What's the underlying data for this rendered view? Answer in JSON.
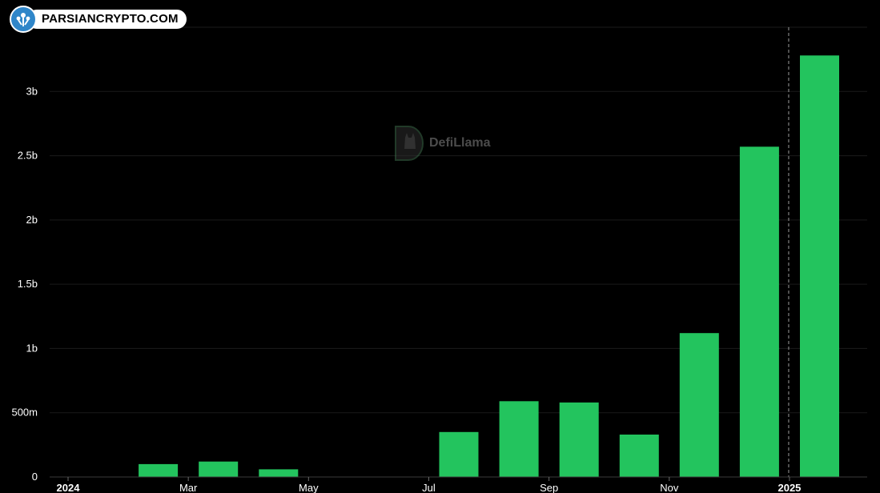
{
  "brand": {
    "label": "PARSIANCRYPTO.COM",
    "icon": "parsiancrypto-logo-icon"
  },
  "watermark": {
    "label": "DefiLlama",
    "icon": "defillama-logo-icon"
  },
  "colors": {
    "background": "#000000",
    "bar": "#23c45e",
    "grid": "#1b1b1b",
    "text": "#ffffff",
    "crosshair": "#9a9a9a"
  },
  "chart_data": {
    "type": "bar",
    "title": "",
    "xlabel": "",
    "ylabel": "",
    "ylim": [
      0,
      3500000000
    ],
    "y_ticks": [
      {
        "value": 0,
        "label": "0"
      },
      {
        "value": 500000000,
        "label": "500m"
      },
      {
        "value": 1000000000,
        "label": "1b"
      },
      {
        "value": 1500000000,
        "label": "1.5b"
      },
      {
        "value": 2000000000,
        "label": "2b"
      },
      {
        "value": 2500000000,
        "label": "2.5b"
      },
      {
        "value": 3000000000,
        "label": "3b"
      }
    ],
    "x_ticks": [
      {
        "label": "2024",
        "bold": true,
        "month_index": 0
      },
      {
        "label": "Mar",
        "bold": false,
        "month_index": 2
      },
      {
        "label": "May",
        "bold": false,
        "month_index": 4
      },
      {
        "label": "Jul",
        "bold": false,
        "month_index": 6
      },
      {
        "label": "Sep",
        "bold": false,
        "month_index": 8
      },
      {
        "label": "Nov",
        "bold": false,
        "month_index": 10
      },
      {
        "label": "2025",
        "bold": true,
        "month_index": 12
      }
    ],
    "categories": [
      "2024-01",
      "2024-02",
      "2024-03",
      "2024-04",
      "2024-05",
      "2024-06",
      "2024-07",
      "2024-08",
      "2024-09",
      "2024-10",
      "2024-11",
      "2024-12",
      "2025-01"
    ],
    "values": [
      0,
      100000000,
      120000000,
      60000000,
      0,
      0,
      350000000,
      590000000,
      580000000,
      330000000,
      1120000000,
      2570000000,
      3280000000
    ],
    "crosshair_category": "2025-01",
    "grid": true,
    "legend": "none"
  }
}
